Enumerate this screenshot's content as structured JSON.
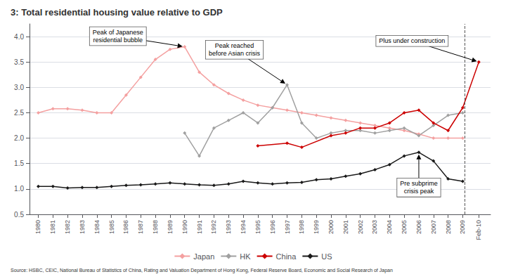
{
  "chart_data": {
    "type": "line",
    "title": "3: Total residential housing value relative to GDP",
    "source": "Source: HSBC, CEIC, National Bureau of Statistics of China, Rating and Valuation Department of Hong Kong, Federal Reserve Board, Economic and Social Research of Japan",
    "marker": "diamond",
    "series": [
      {
        "name": "Japan",
        "color": "#f4a0a0",
        "x": [
          1980,
          1981,
          1982,
          1983,
          1984,
          1985,
          1986,
          1987,
          1988,
          1989,
          1990,
          1991,
          1992,
          1993,
          1994,
          1995,
          1996,
          1997,
          1998,
          1999,
          2000,
          2001,
          2002,
          2003,
          2004,
          2005,
          2006,
          2007,
          2008,
          2009
        ],
        "values": [
          2.5,
          2.58,
          2.58,
          2.55,
          2.5,
          2.5,
          2.85,
          3.2,
          3.55,
          3.75,
          3.8,
          3.3,
          3.05,
          2.88,
          2.75,
          2.65,
          2.6,
          2.55,
          2.5,
          2.45,
          2.4,
          2.35,
          2.3,
          2.25,
          2.2,
          2.15,
          2.08,
          2.0,
          2.0,
          2.0
        ]
      },
      {
        "name": "HK",
        "color": "#a0a0a0",
        "x": [
          1990,
          1991,
          1992,
          1993,
          1994,
          1995,
          1996,
          1997,
          1998,
          1999,
          2000,
          2001,
          2002,
          2003,
          2004,
          2005,
          2006,
          2007,
          2008,
          2009
        ],
        "values": [
          2.1,
          1.65,
          2.2,
          2.35,
          2.5,
          2.3,
          2.6,
          3.05,
          2.3,
          2.0,
          2.1,
          2.15,
          2.15,
          2.1,
          2.15,
          2.2,
          2.05,
          2.25,
          2.45,
          2.5
        ]
      },
      {
        "name": "China",
        "color": "#cc0000",
        "x": [
          1995,
          1997,
          1998,
          2000,
          2001,
          2002,
          2003,
          2004,
          2005,
          2006,
          2007,
          2008,
          2009,
          2010.1
        ],
        "values": [
          1.85,
          1.9,
          1.82,
          2.05,
          2.1,
          2.2,
          2.2,
          2.3,
          2.5,
          2.55,
          2.3,
          2.15,
          2.6,
          3.5
        ]
      },
      {
        "name": "US",
        "color": "#1a1a1a",
        "x": [
          1980,
          1981,
          1982,
          1983,
          1984,
          1985,
          1986,
          1987,
          1988,
          1989,
          1990,
          1991,
          1992,
          1993,
          1994,
          1995,
          1996,
          1997,
          1998,
          1999,
          2000,
          2001,
          2002,
          2003,
          2004,
          2005,
          2006,
          2007,
          2008,
          2009
        ],
        "values": [
          1.05,
          1.05,
          1.02,
          1.03,
          1.03,
          1.05,
          1.07,
          1.08,
          1.1,
          1.12,
          1.1,
          1.08,
          1.07,
          1.1,
          1.15,
          1.12,
          1.1,
          1.12,
          1.13,
          1.18,
          1.2,
          1.25,
          1.3,
          1.38,
          1.48,
          1.65,
          1.72,
          1.55,
          1.2,
          1.15
        ]
      }
    ],
    "xlim": [
      1979.4,
      2010.9
    ],
    "xticks": [
      1980,
      1981,
      1982,
      1983,
      1984,
      1985,
      1986,
      1987,
      1988,
      1989,
      1990,
      1991,
      1992,
      1993,
      1994,
      1995,
      1996,
      1997,
      1998,
      1999,
      2000,
      2001,
      2002,
      2003,
      2004,
      2005,
      2006,
      2007,
      2008,
      2009,
      {
        "value": 2010.1,
        "label": "Feb-10"
      }
    ],
    "ylim": [
      0.5,
      4.25
    ],
    "yticks": [
      0.5,
      {
        "value": 1,
        "label": "1.0"
      },
      1.5,
      {
        "value": 2,
        "label": "2.0"
      },
      2.5,
      {
        "value": 3,
        "label": "3.0"
      },
      3.5,
      {
        "value": 4,
        "label": "4.0"
      }
    ],
    "grid": "y",
    "legend": "bottom",
    "vlines": [
      2009.15
    ],
    "annotations": [
      {
        "text": "Peak of Japanese\nresidential bubble",
        "x": 1990,
        "y": 3.8
      },
      {
        "text": "Peak reached\nbefore Asian crisis",
        "x": 1997,
        "y": 3.05
      },
      {
        "text": "Plus under construction",
        "x": 2010.1,
        "y": 3.5
      },
      {
        "text": "Pre subprime\ncrisis peak",
        "x": 2006,
        "y": 1.72
      }
    ]
  }
}
